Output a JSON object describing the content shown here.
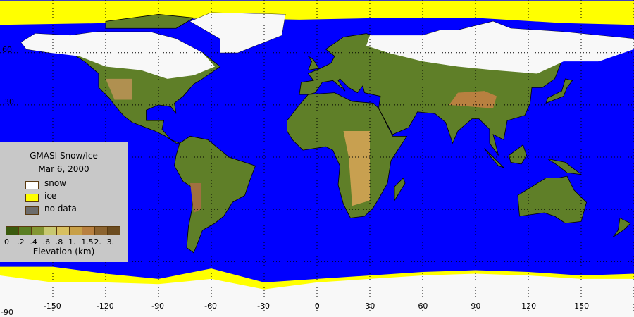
{
  "legend": {
    "title": "GMASI Snow/Ice",
    "date": "Mar  6, 2000",
    "items": [
      {
        "label": "snow",
        "color": "#ffffff"
      },
      {
        "label": "ice",
        "color": "#ffff00"
      },
      {
        "label": "no data",
        "color": "#6c6c6c"
      }
    ],
    "colorbar": {
      "colors": [
        "#3a5a0e",
        "#5a7e22",
        "#849632",
        "#c8c870",
        "#d8c060",
        "#c8a048",
        "#b88040",
        "#8c6430",
        "#6c4c20"
      ],
      "tick_labels": [
        "0",
        ".2",
        ".4",
        ".6",
        ".8",
        "1.",
        "1.5",
        "2.",
        "3."
      ],
      "label": "Elevation (km)"
    }
  },
  "axes": {
    "lon_labels": [
      "-150",
      "-120",
      "-90",
      "-60",
      "-30",
      "0",
      "30",
      "60",
      "90",
      "120",
      "150"
    ],
    "lat_labels": [
      "60",
      "30",
      "-90"
    ]
  },
  "colors": {
    "ocean": "#0000ff",
    "land": "#5f7f28",
    "snow": "#f8f8f8",
    "ice": "#ffff00",
    "border": "#000000"
  }
}
